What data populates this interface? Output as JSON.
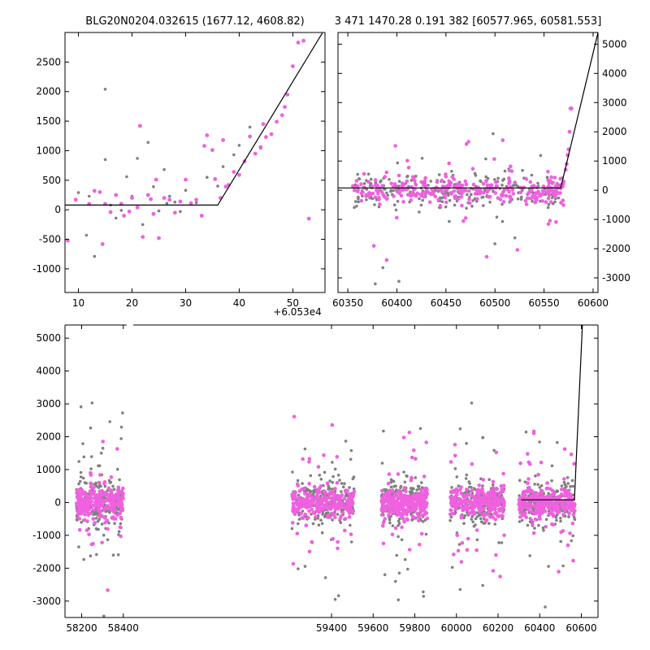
{
  "titles": {
    "left": "BLG20N0204.032615 (1677.12, 4608.82)",
    "right": "3 471 1470.28 0.191 382 [60577.965, 60581.553]"
  },
  "offset_label": "+6.053e4",
  "colors": {
    "grey": "#808080",
    "pink": "#f060e0",
    "model": "#000000"
  },
  "chart_data": [
    {
      "id": "zoom",
      "type": "scatter",
      "xlim": [
        7.5,
        56
      ],
      "ylim": [
        -1400,
        3000
      ],
      "x_offset": 60530,
      "xticks": [
        10,
        20,
        30,
        40,
        50
      ],
      "yticks": [
        -1000,
        -500,
        0,
        500,
        1000,
        1500,
        2000,
        2500
      ],
      "grey_points": [
        [
          10,
          290
        ],
        [
          11.5,
          -430
        ],
        [
          13,
          -790
        ],
        [
          15,
          850
        ],
        [
          16,
          80
        ],
        [
          17,
          -140
        ],
        [
          18,
          -10
        ],
        [
          19,
          560
        ],
        [
          20,
          230
        ],
        [
          21,
          870
        ],
        [
          22,
          -250
        ],
        [
          23,
          1140
        ],
        [
          24,
          390
        ],
        [
          25,
          -20
        ],
        [
          26,
          680
        ],
        [
          27,
          230
        ],
        [
          28,
          130
        ],
        [
          29,
          -30
        ],
        [
          30,
          330
        ],
        [
          32,
          120
        ],
        [
          34,
          550
        ],
        [
          36,
          400
        ],
        [
          37,
          730
        ],
        [
          39,
          930
        ],
        [
          40,
          1090
        ],
        [
          42,
          1400
        ],
        [
          44,
          1040
        ],
        [
          15,
          2040
        ],
        [
          12,
          230
        ],
        [
          26.5,
          110
        ]
      ],
      "pink_points": [
        [
          12,
          100
        ],
        [
          13,
          320
        ],
        [
          14,
          300
        ],
        [
          14.5,
          -580
        ],
        [
          15,
          100
        ],
        [
          16,
          -40
        ],
        [
          17,
          250
        ],
        [
          18,
          100
        ],
        [
          18.5,
          -100
        ],
        [
          19.5,
          -30
        ],
        [
          20,
          200
        ],
        [
          21,
          40
        ],
        [
          21.5,
          1420
        ],
        [
          22,
          -460
        ],
        [
          23,
          250
        ],
        [
          23.5,
          180
        ],
        [
          24,
          -70
        ],
        [
          24.5,
          510
        ],
        [
          25,
          -480
        ],
        [
          26,
          200
        ],
        [
          27,
          170
        ],
        [
          28,
          -50
        ],
        [
          29,
          140
        ],
        [
          30,
          510
        ],
        [
          31,
          110
        ],
        [
          32,
          170
        ],
        [
          33,
          -100
        ],
        [
          33.5,
          1080
        ],
        [
          34,
          1260
        ],
        [
          35,
          1010
        ],
        [
          35.5,
          520
        ],
        [
          36.5,
          200
        ],
        [
          37,
          1180
        ],
        [
          37.5,
          390
        ],
        [
          38,
          420
        ],
        [
          39,
          640
        ],
        [
          40,
          590
        ],
        [
          41,
          820
        ],
        [
          42,
          1240
        ],
        [
          43,
          950
        ],
        [
          44,
          1060
        ],
        [
          45,
          1230
        ],
        [
          46,
          1280
        ],
        [
          47,
          1490
        ],
        [
          48,
          1600
        ],
        [
          48.5,
          1740
        ],
        [
          49,
          1950
        ],
        [
          50,
          2430
        ],
        [
          51,
          2830
        ],
        [
          52,
          2860
        ],
        [
          53,
          -150
        ],
        [
          8,
          -520
        ],
        [
          9.5,
          170
        ],
        [
          44.5,
          1450
        ]
      ],
      "model_line": [
        [
          7.5,
          80
        ],
        [
          36,
          80
        ],
        [
          55.5,
          2990
        ]
      ]
    },
    {
      "id": "season",
      "type": "scatter",
      "xlim": [
        60340,
        60605
      ],
      "ylim": [
        -3500,
        5400
      ],
      "xticks": [
        60350,
        60400,
        60450,
        60500,
        60550,
        60600
      ],
      "yticks": [
        -3000,
        -2000,
        -1000,
        0,
        1000,
        2000,
        3000,
        4000,
        5000
      ],
      "yaxis_side": "right",
      "model_line": [
        [
          60340,
          80
        ],
        [
          60567,
          80
        ],
        [
          60605,
          5400
        ]
      ]
    },
    {
      "id": "full",
      "type": "scatter",
      "xlim": [
        58120,
        60680
      ],
      "ylim": [
        -3500,
        5400
      ],
      "xticks": [
        58200,
        58400,
        59400,
        59600,
        59800,
        60000,
        60200,
        60400,
        60600
      ],
      "yticks": [
        -3000,
        -2000,
        -1000,
        0,
        1000,
        2000,
        3000,
        4000,
        5000
      ],
      "break_gap": [
        58432,
        59210
      ],
      "seasons": [
        [
          58175,
          58400
        ],
        [
          59210,
          59510
        ],
        [
          59640,
          59860
        ],
        [
          59970,
          60230
        ],
        [
          60300,
          60570
        ]
      ],
      "model_line": [
        [
          60310,
          80
        ],
        [
          60567,
          80
        ],
        [
          60605,
          5400
        ]
      ]
    }
  ]
}
